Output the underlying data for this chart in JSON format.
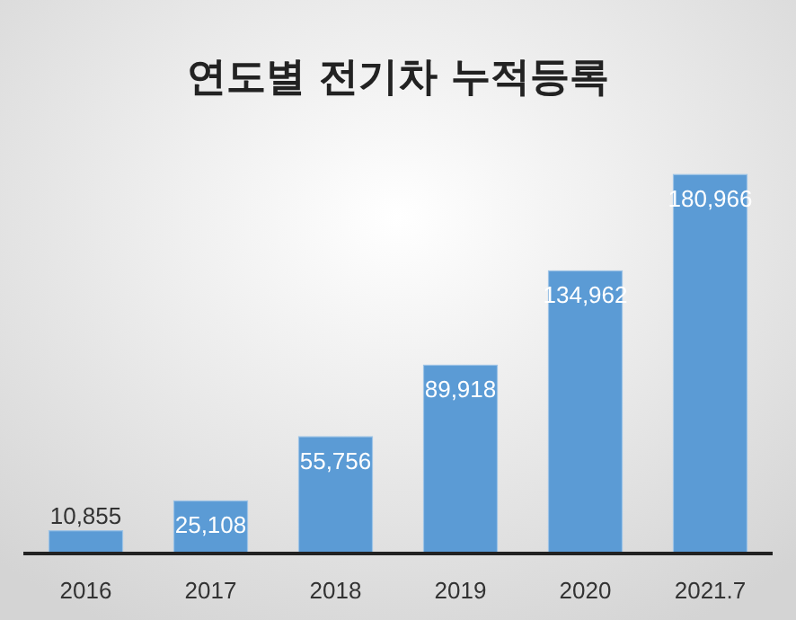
{
  "chart_data": {
    "type": "bar",
    "title": "연도별 전기차 누적등록",
    "categories": [
      "2016",
      "2017",
      "2018",
      "2019",
      "2020",
      "2021.7"
    ],
    "values": [
      10855,
      25108,
      55756,
      89918,
      134962,
      180966
    ],
    "value_labels": [
      "10,855",
      "25,108",
      "55,756",
      "89,918",
      "134,962",
      "180,966"
    ],
    "color": "#5b9bd5",
    "tick_labels": "x"
  }
}
